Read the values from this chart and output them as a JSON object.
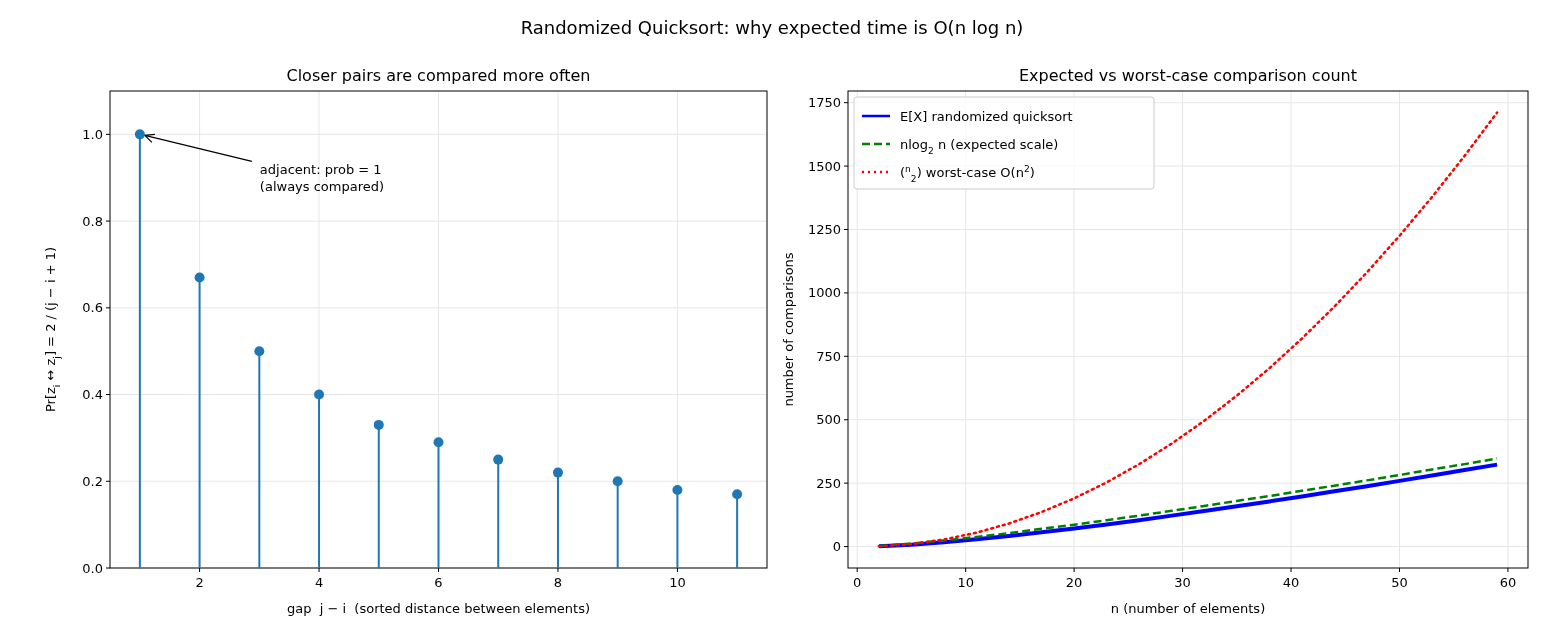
{
  "chart_data": [
    {
      "type": "other",
      "title": "Randomized Quicksort: why expected time is O(n log n)"
    },
    {
      "type": "lollipop",
      "title": "Closer pairs are compared more often",
      "xlabel": "gap  j − i  (sorted distance between elements)",
      "ylabel": "Pr[z$_{i}$ ↔ z$_{j}$] = 2 / (j − i + 1)",
      "x": [
        1,
        2,
        3,
        4,
        5,
        6,
        7,
        8,
        9,
        10,
        11
      ],
      "values": [
        1.0,
        0.67,
        0.5,
        0.4,
        0.33,
        0.29,
        0.25,
        0.22,
        0.2,
        0.18,
        0.17
      ],
      "color": "#1f77b4",
      "marker": "circle",
      "xlim": [
        0.5,
        11.5
      ],
      "xticks": [
        2,
        4,
        6,
        8,
        10
      ],
      "ylim": [
        0,
        1.1
      ],
      "yticks": [
        {
          "value": 0,
          "label": "0.0"
        },
        {
          "value": 0.2,
          "label": "0.2"
        },
        {
          "value": 0.4,
          "label": "0.4"
        },
        {
          "value": 0.6,
          "label": "0.6"
        },
        {
          "value": 0.8,
          "label": "0.8"
        },
        {
          "value": 1,
          "label": "1.0"
        }
      ],
      "grid": true,
      "annotations": [
        {
          "text": "adjacent: prob = 1\n(always compared)",
          "x": 1,
          "y": 1
        }
      ]
    },
    {
      "type": "line",
      "title": "Expected vs worst-case comparison count",
      "xlabel": "n (number of elements)",
      "ylabel": "number of comparisons",
      "x": [
        2,
        5,
        8,
        11,
        14,
        17,
        20,
        23,
        26,
        29,
        32,
        35,
        38,
        41,
        44,
        47,
        50,
        53,
        56,
        59
      ],
      "xlim": [
        -0.85,
        61.85
      ],
      "xticks": [
        0,
        10,
        20,
        30,
        40,
        50,
        60
      ],
      "ylim": [
        -84.5,
        1796
      ],
      "yticks": [
        0,
        250,
        500,
        750,
        1000,
        1250,
        1500,
        1750
      ],
      "grid": true,
      "legend": "top left",
      "series": [
        {
          "name": "E[X] randomized quicksort",
          "color": "#0000ff",
          "line_style": "solid",
          "values": [
            1,
            7,
            17,
            29,
            42,
            56,
            71,
            87,
            104,
            122,
            140,
            159,
            178,
            197,
            218,
            238,
            259,
            280,
            302,
            323
          ]
        },
        {
          "name": "nlog$_{2}$ n (expected scale)",
          "color": "#008000",
          "line_style": "dashed",
          "values": [
            2,
            12,
            24,
            38,
            53,
            70,
            86,
            104,
            122,
            141,
            160,
            180,
            199,
            220,
            240,
            261,
            282,
            304,
            325,
            347
          ]
        },
        {
          "name": "($^{n}$$_{2}$) worst-case O(n$^{2}$)",
          "color": "#ff0000",
          "line_style": "dotted",
          "values": [
            1,
            10,
            28,
            55,
            91,
            136,
            190,
            253,
            325,
            406,
            496,
            595,
            703,
            820,
            946,
            1081,
            1225,
            1378,
            1540,
            1711
          ]
        }
      ]
    }
  ]
}
